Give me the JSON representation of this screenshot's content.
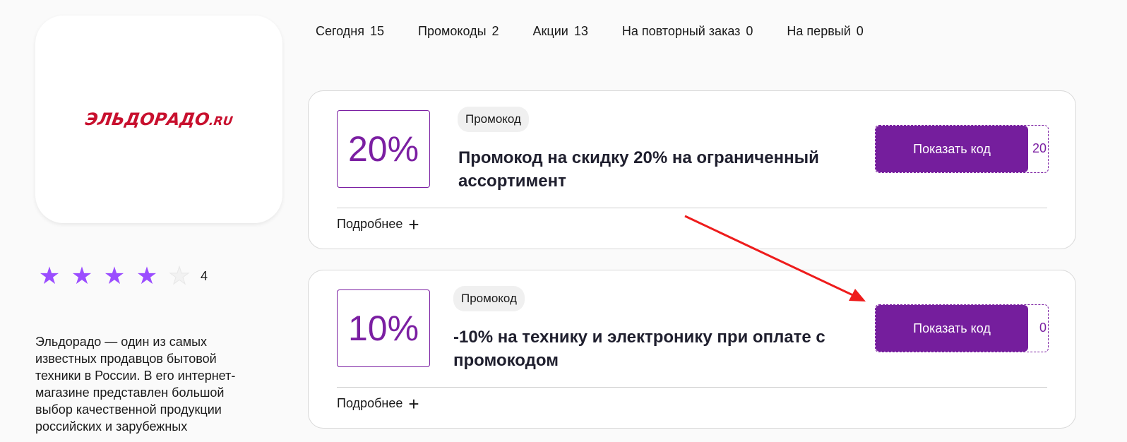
{
  "store": {
    "logo_text": "ЭЛЬДОРАДО",
    "logo_suffix": ".RU",
    "rating": 4,
    "rating_max": 5,
    "rating_label": "4",
    "description": "Эльдорадо — один из самых известных продавцов бытовой техники в России. В его интернет-магазине представлен большой выбор качественной продукции российских и зарубежных"
  },
  "tabs": [
    {
      "label": "Сегодня",
      "count": "15"
    },
    {
      "label": "Промокоды",
      "count": "2"
    },
    {
      "label": "Акции",
      "count": "13"
    },
    {
      "label": "На повторный заказ",
      "count": "0"
    },
    {
      "label": "На первый",
      "count": "0"
    }
  ],
  "offers": [
    {
      "discount": "20%",
      "badge": "Промокод",
      "title": "Промокод на скидку 20% на ограниченный ассортимент",
      "button": "Показать код",
      "code_peek": "20",
      "more": "Подробнее"
    },
    {
      "discount": "10%",
      "badge": "Промокод",
      "title": "-10% на технику и электронику при оплате с промокодом",
      "button": "Показать код",
      "code_peek": "0",
      "more": "Подробнее"
    }
  ],
  "colors": {
    "accent": "#751e9d",
    "star": "#9b4dff",
    "logo": "#c8102e",
    "annotation_arrow": "#ee1c1c"
  }
}
